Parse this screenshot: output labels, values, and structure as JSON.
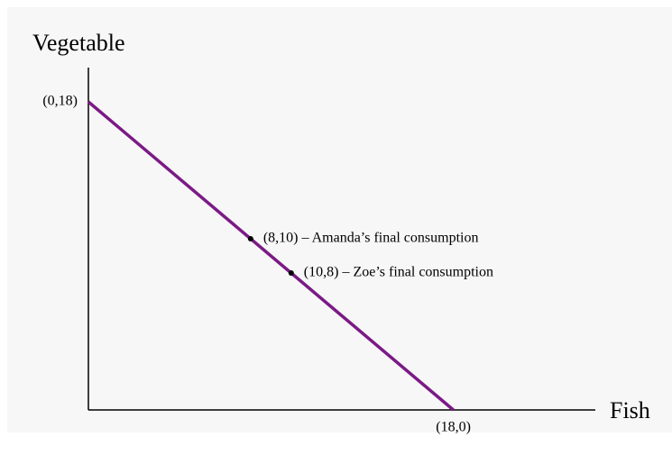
{
  "chart_data": {
    "type": "line",
    "x_label": "Fish",
    "y_label": "Vegetable",
    "x": [
      0,
      18
    ],
    "series": [
      {
        "color": "#7b1a86",
        "values": [
          18,
          0
        ]
      }
    ],
    "xlim": [
      0,
      25
    ],
    "ylim": [
      0,
      20
    ],
    "annotations": [
      {
        "x": 0,
        "y": 18,
        "label": "(0,18)",
        "marker": false
      },
      {
        "x": 18,
        "y": 0,
        "label": "(18,0)",
        "marker": false
      },
      {
        "x": 8,
        "y": 10,
        "label": "(8,10) – Amanda’s final consumption",
        "marker": true
      },
      {
        "x": 10,
        "y": 8,
        "label": "(10,8) – Zoe’s final consumption",
        "marker": true
      }
    ]
  }
}
